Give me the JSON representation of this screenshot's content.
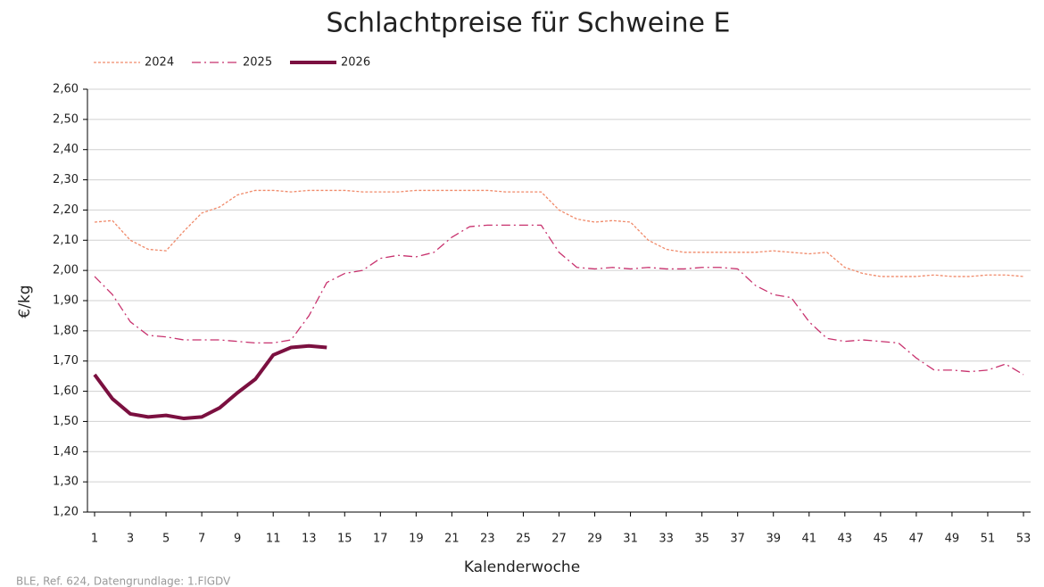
{
  "chart_data": {
    "type": "line",
    "title": "Schlachtpreise für Schweine E",
    "x_label": "Kalenderwoche",
    "y_label": "€/kg",
    "source": "BLE, Ref. 624, Datengrundlage: 1.FlGDV",
    "x": [
      1,
      2,
      3,
      4,
      5,
      6,
      7,
      8,
      9,
      10,
      11,
      12,
      13,
      14,
      15,
      16,
      17,
      18,
      19,
      20,
      21,
      22,
      23,
      24,
      25,
      26,
      27,
      28,
      29,
      30,
      31,
      32,
      33,
      34,
      35,
      36,
      37,
      38,
      39,
      40,
      41,
      42,
      43,
      44,
      45,
      46,
      47,
      48,
      49,
      50,
      51,
      52,
      53
    ],
    "series": [
      {
        "name": "2024",
        "color": "#f08a6a",
        "dash": "dotted",
        "values": [
          2.16,
          2.165,
          2.1,
          2.07,
          2.065,
          2.13,
          2.19,
          2.21,
          2.25,
          2.265,
          2.265,
          2.26,
          2.265,
          2.265,
          2.265,
          2.26,
          2.26,
          2.26,
          2.265,
          2.265,
          2.265,
          2.265,
          2.265,
          2.26,
          2.26,
          2.26,
          2.2,
          2.17,
          2.16,
          2.165,
          2.16,
          2.1,
          2.07,
          2.06,
          2.06,
          2.06,
          2.06,
          2.06,
          2.065,
          2.06,
          2.055,
          2.06,
          2.01,
          1.99,
          1.98,
          1.98,
          1.98,
          1.985,
          1.98,
          1.98,
          1.985,
          1.985,
          1.98
        ]
      },
      {
        "name": "2025",
        "color": "#c8326e",
        "dash": "dashdot",
        "values": [
          1.98,
          1.92,
          1.83,
          1.785,
          1.78,
          1.77,
          1.77,
          1.77,
          1.765,
          1.76,
          1.76,
          1.77,
          1.85,
          1.96,
          1.99,
          2.0,
          2.04,
          2.05,
          2.045,
          2.06,
          2.11,
          2.145,
          2.15,
          2.15,
          2.15,
          2.15,
          2.06,
          2.01,
          2.005,
          2.01,
          2.005,
          2.01,
          2.005,
          2.005,
          2.01,
          2.01,
          2.005,
          1.95,
          1.92,
          1.91,
          1.83,
          1.775,
          1.765,
          1.77,
          1.765,
          1.76,
          1.71,
          1.67,
          1.67,
          1.665,
          1.67,
          1.69,
          1.655
        ]
      },
      {
        "name": "2026",
        "color": "#7b1040",
        "dash": "solid",
        "values": [
          1.655,
          1.575,
          1.525,
          1.515,
          1.52,
          1.51,
          1.515,
          1.545,
          1.595,
          1.64,
          1.72,
          1.745,
          1.75,
          1.745,
          null,
          null,
          null,
          null,
          null,
          null,
          null,
          null,
          null,
          null,
          null,
          null,
          null,
          null,
          null,
          null,
          null,
          null,
          null,
          null,
          null,
          null,
          null,
          null,
          null,
          null,
          null,
          null,
          null,
          null,
          null,
          null,
          null,
          null,
          null,
          null,
          null,
          null,
          null
        ]
      }
    ],
    "xlim": [
      0.6,
      53.4
    ],
    "xticks": [
      1,
      3,
      5,
      7,
      9,
      11,
      13,
      15,
      17,
      19,
      21,
      23,
      25,
      27,
      29,
      31,
      33,
      35,
      37,
      39,
      41,
      43,
      45,
      47,
      49,
      51,
      53
    ],
    "ylim": [
      1.2,
      2.6
    ],
    "yticks": [
      {
        "value": 1.2,
        "label": "1,20"
      },
      {
        "value": 1.3,
        "label": "1,30"
      },
      {
        "value": 1.4,
        "label": "1,40"
      },
      {
        "value": 1.5,
        "label": "1,50"
      },
      {
        "value": 1.6,
        "label": "1,60"
      },
      {
        "value": 1.7,
        "label": "1,70"
      },
      {
        "value": 1.8,
        "label": "1,80"
      },
      {
        "value": 1.9,
        "label": "1,90"
      },
      {
        "value": 2.0,
        "label": "2,00"
      },
      {
        "value": 2.1,
        "label": "2,10"
      },
      {
        "value": 2.2,
        "label": "2,20"
      },
      {
        "value": 2.3,
        "label": "2,30"
      },
      {
        "value": 2.4,
        "label": "2,40"
      },
      {
        "value": 2.5,
        "label": "2,50"
      },
      {
        "value": 2.6,
        "label": "2,60"
      }
    ],
    "grid": true,
    "legend": "top-left"
  }
}
